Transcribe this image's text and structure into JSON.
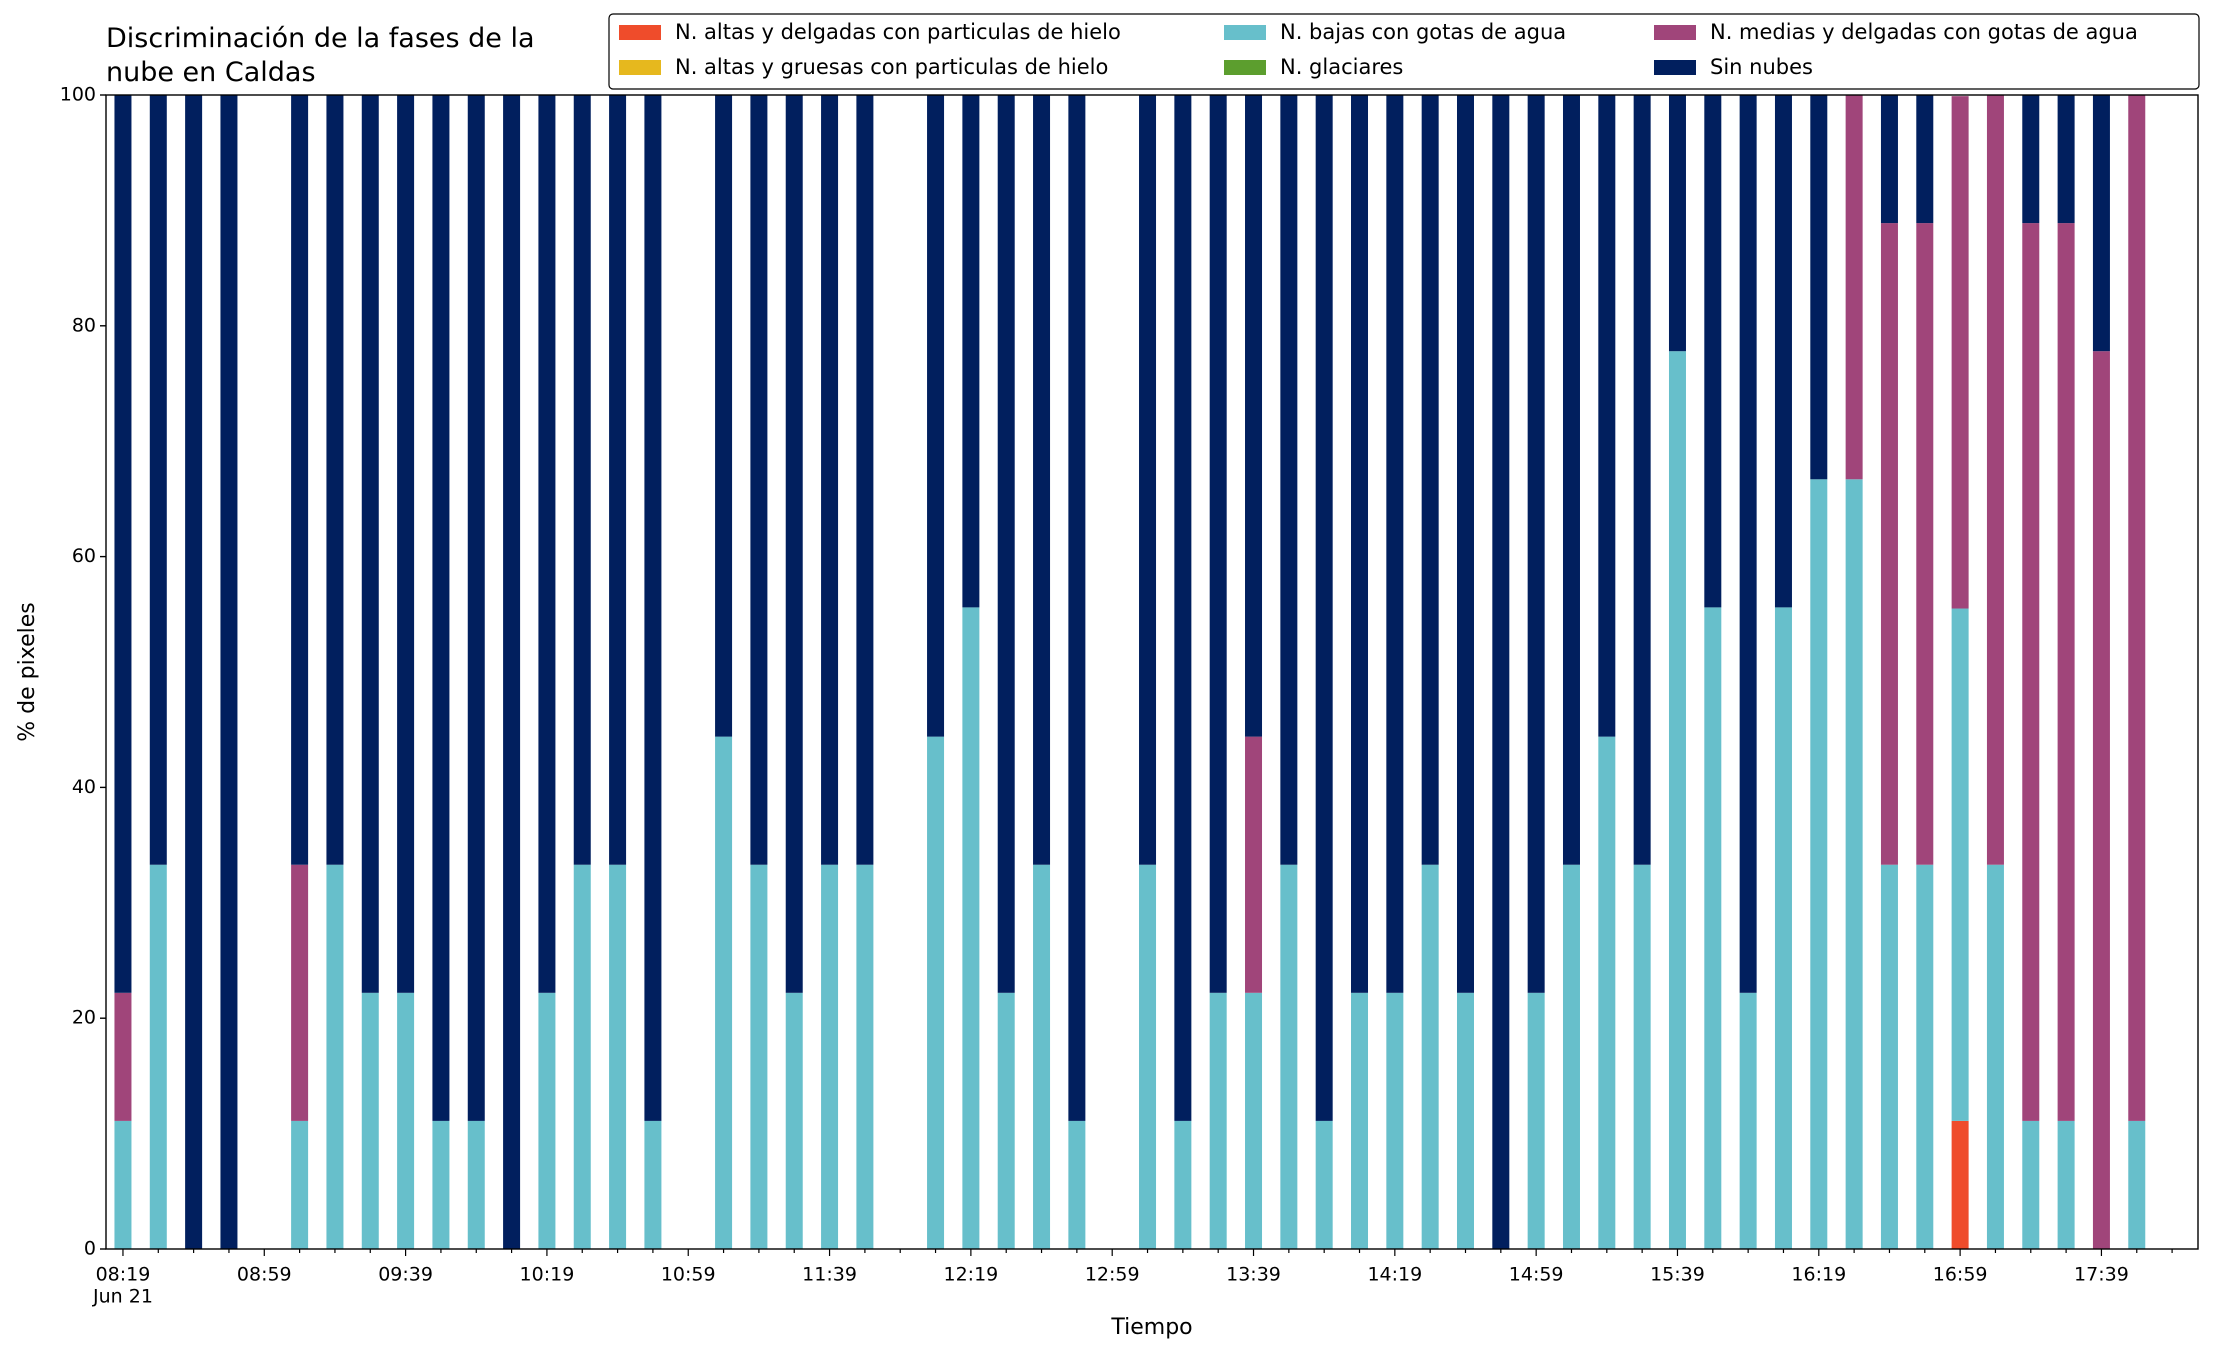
{
  "chart_data": {
    "type": "stacked_bar",
    "title": "Discriminación de la fases de la\nnube en Caldas",
    "x_label": "Tiempo",
    "y_label": "% de pixeles",
    "x_sublabel": "Jun 21",
    "categories": [
      "08:19",
      null,
      null,
      null,
      "08:59",
      null,
      null,
      null,
      "09:39",
      null,
      null,
      null,
      "10:19",
      null,
      null,
      null,
      "10:59",
      null,
      null,
      null,
      "11:39",
      null,
      null,
      null,
      "12:19",
      null,
      null,
      null,
      "12:59",
      null,
      null,
      null,
      "13:39",
      null,
      null,
      null,
      "14:19",
      null,
      null,
      null,
      "14:59",
      null,
      null,
      null,
      "15:39",
      null,
      null,
      null,
      "16:19",
      null,
      null,
      null,
      "16:59",
      null,
      null,
      null,
      "17:39",
      null
    ],
    "ylim": [
      0,
      100
    ],
    "yticks": [
      0,
      20,
      40,
      60,
      80,
      100
    ],
    "series": [
      {
        "name": "N. altas y delgadas con particulas de hielo",
        "color": "#ef4c2b",
        "values": [
          0,
          0,
          0,
          0,
          null,
          0,
          0,
          0,
          0,
          0,
          0,
          0,
          0,
          0,
          0,
          0,
          null,
          0,
          0,
          0,
          0,
          0,
          null,
          0,
          0,
          0,
          0,
          0,
          null,
          0,
          0,
          0,
          0,
          0,
          0,
          0,
          0,
          0,
          0,
          0,
          0,
          0,
          0,
          0,
          0,
          0,
          0,
          0,
          0,
          0,
          0,
          0,
          11.1,
          0,
          0,
          0,
          0,
          0
        ]
      },
      {
        "name": "N. altas y gruesas con particulas de hielo",
        "color": "#e6b81e",
        "values": [
          0,
          0,
          0,
          0,
          null,
          0,
          0,
          0,
          0,
          0,
          0,
          0,
          0,
          0,
          0,
          0,
          null,
          0,
          0,
          0,
          0,
          0,
          null,
          0,
          0,
          0,
          0,
          0,
          null,
          0,
          0,
          0,
          0,
          0,
          0,
          0,
          0,
          0,
          0,
          0,
          0,
          0,
          0,
          0,
          0,
          0,
          0,
          0,
          0,
          0,
          0,
          0,
          0,
          0,
          0,
          0,
          0,
          0
        ]
      },
      {
        "name": "N. bajas con gotas de agua",
        "color": "#67bfcb",
        "values": [
          11.1,
          33.3,
          0,
          0,
          null,
          11.1,
          33.3,
          22.2,
          22.2,
          11.1,
          11.1,
          0,
          22.2,
          33.3,
          33.3,
          11.1,
          null,
          44.4,
          33.3,
          22.2,
          33.3,
          33.3,
          null,
          44.4,
          55.6,
          22.2,
          33.3,
          11.1,
          null,
          33.3,
          11.1,
          22.2,
          22.2,
          33.3,
          11.1,
          22.2,
          22.2,
          33.3,
          22.2,
          0,
          22.2,
          33.3,
          44.4,
          33.3,
          77.8,
          55.6,
          22.2,
          55.6,
          66.7,
          66.7,
          33.3,
          33.3,
          44.4,
          33.3,
          11.1,
          11.1,
          0,
          11.1
        ]
      },
      {
        "name": "N. glaciares",
        "color": "#5c9e2e",
        "values": [
          0,
          0,
          0,
          0,
          null,
          0,
          0,
          0,
          0,
          0,
          0,
          0,
          0,
          0,
          0,
          0,
          null,
          0,
          0,
          0,
          0,
          0,
          null,
          0,
          0,
          0,
          0,
          0,
          null,
          0,
          0,
          0,
          0,
          0,
          0,
          0,
          0,
          0,
          0,
          0,
          0,
          0,
          0,
          0,
          0,
          0,
          0,
          0,
          0,
          0,
          0,
          0,
          0,
          0,
          0,
          0,
          0,
          0
        ]
      },
      {
        "name": "N. medias y delgadas con gotas de agua",
        "color": "#a0457a",
        "values": [
          11.1,
          0,
          0,
          0,
          null,
          22.2,
          0,
          0,
          0,
          0,
          0,
          0,
          0,
          0,
          0,
          0,
          null,
          0,
          0,
          0,
          0,
          0,
          null,
          0,
          0,
          0,
          0,
          0,
          null,
          0,
          0,
          0,
          22.2,
          0,
          0,
          0,
          0,
          0,
          0,
          0,
          0,
          0,
          0,
          0,
          0,
          0,
          0,
          0,
          0,
          33.3,
          55.6,
          55.6,
          44.4,
          66.7,
          77.8,
          77.8,
          77.8,
          88.9
        ]
      },
      {
        "name": "Sin nubes",
        "color": "#011f5e",
        "values": [
          77.8,
          66.7,
          100,
          100,
          null,
          66.7,
          66.7,
          77.8,
          77.8,
          88.9,
          88.9,
          100,
          77.8,
          66.7,
          66.7,
          88.9,
          null,
          55.6,
          66.7,
          77.8,
          66.7,
          66.7,
          null,
          55.6,
          44.4,
          77.8,
          66.7,
          88.9,
          null,
          66.7,
          88.9,
          77.8,
          55.6,
          66.7,
          88.9,
          77.8,
          77.8,
          66.7,
          77.8,
          100,
          77.8,
          66.7,
          55.6,
          66.7,
          22.2,
          44.4,
          77.8,
          44.4,
          33.3,
          0,
          11.1,
          11.1,
          0,
          0,
          11.1,
          11.1,
          22.2,
          0
        ]
      }
    ]
  }
}
